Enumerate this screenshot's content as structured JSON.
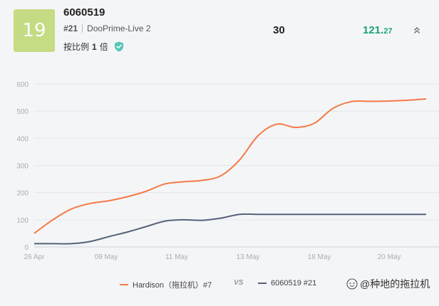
{
  "header": {
    "rank_badge": "19",
    "account_id": "6060519",
    "rank_tag": "#21",
    "server": "DooPrime-Live 2",
    "ratio_prefix": "按比例",
    "ratio_value": "1",
    "ratio_suffix": "倍",
    "stat_value": "30",
    "profit_int": "121.",
    "profit_dec": "27"
  },
  "colors": {
    "accent_badge": "#c5db84",
    "profit": "#1aa37a",
    "series_a": "#f47a45",
    "series_b": "#56627a",
    "shield": "#57c7b3"
  },
  "chart_data": {
    "type": "line",
    "x_ticks": [
      "26 Apr",
      "09 May",
      "11 May",
      "13 May",
      "18 May",
      "20 May"
    ],
    "ylim": [
      0,
      600
    ],
    "y_ticks": [
      "0",
      "100",
      "200",
      "300",
      "400",
      "500",
      "600"
    ],
    "grid": true,
    "legend_position": "bottom",
    "series": [
      {
        "name": "Hardison（拖拉机）#7",
        "values": [
          50,
          100,
          140,
          160,
          170,
          185,
          205,
          232,
          240,
          245,
          262,
          320,
          410,
          452,
          440,
          455,
          510,
          535,
          536,
          537,
          540,
          545
        ]
      },
      {
        "name": "6060519 #21",
        "values": [
          12,
          12,
          12,
          20,
          38,
          55,
          75,
          95,
          100,
          98,
          106,
          120,
          120,
          120,
          120,
          120,
          120,
          120,
          120,
          120,
          120,
          120
        ]
      }
    ]
  },
  "legend": {
    "series_a": "Hardison（拖拉机）#7",
    "vs": "VS",
    "series_b": "6060519 #21"
  },
  "watermark": {
    "text": "@种地的拖拉机"
  }
}
